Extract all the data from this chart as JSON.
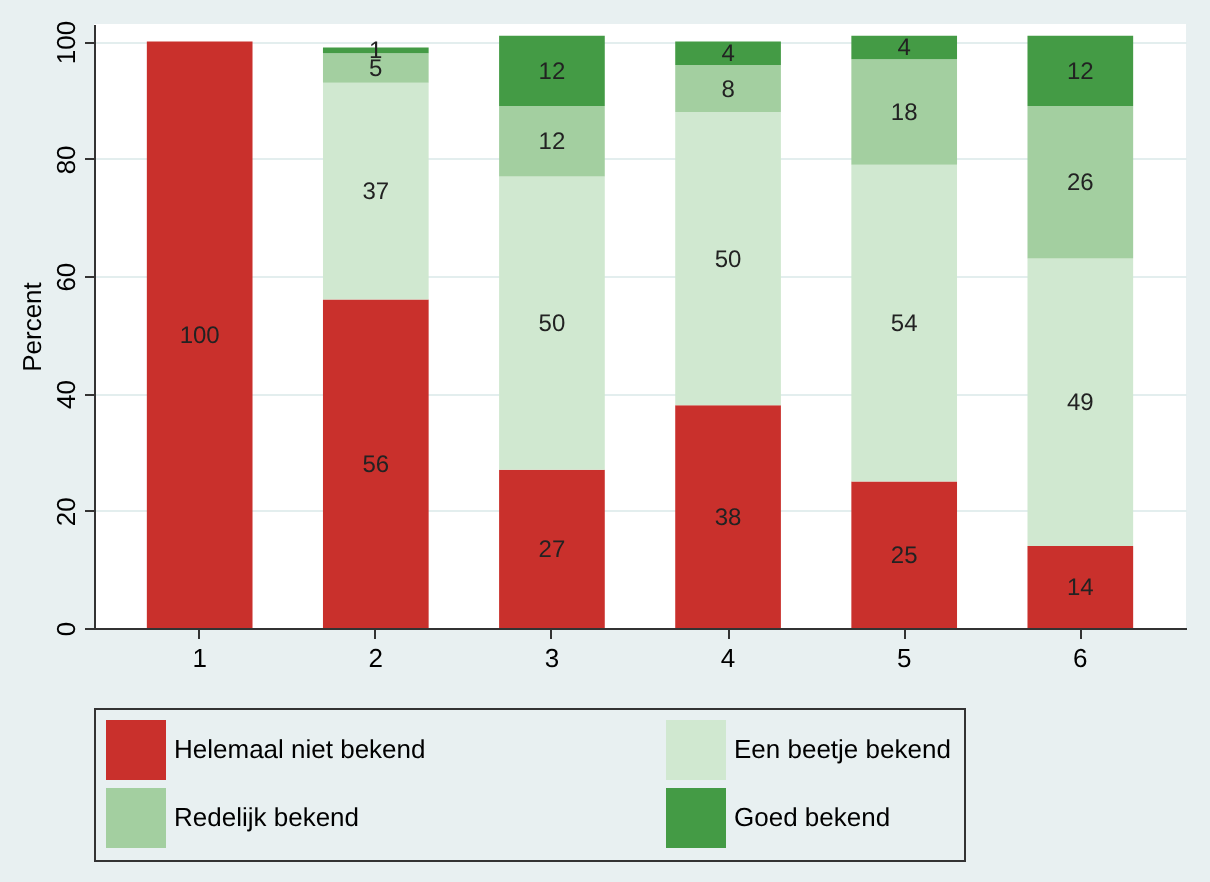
{
  "chart_data": {
    "type": "bar",
    "stacked": true,
    "ylabel": "Percent",
    "categories": [
      "1",
      "2",
      "3",
      "4",
      "5",
      "6"
    ],
    "series": [
      {
        "name": "Helemaal niet bekend",
        "color": "#c9302c",
        "values": [
          100,
          56,
          27,
          38,
          25,
          14
        ]
      },
      {
        "name": "Een beetje bekend",
        "color": "#d0e8d0",
        "values": [
          null,
          37,
          50,
          50,
          54,
          49
        ]
      },
      {
        "name": "Redelijk bekend",
        "color": "#a3cfa0",
        "values": [
          null,
          5,
          12,
          8,
          18,
          26
        ]
      },
      {
        "name": "Goed bekend",
        "color": "#449b45",
        "values": [
          null,
          1,
          12,
          4,
          4,
          12
        ]
      }
    ],
    "ylim": [
      0,
      103
    ],
    "yticks": [
      0,
      20,
      40,
      60,
      80,
      100
    ],
    "grid": "y",
    "legend": "bottom",
    "data_labels": true
  }
}
